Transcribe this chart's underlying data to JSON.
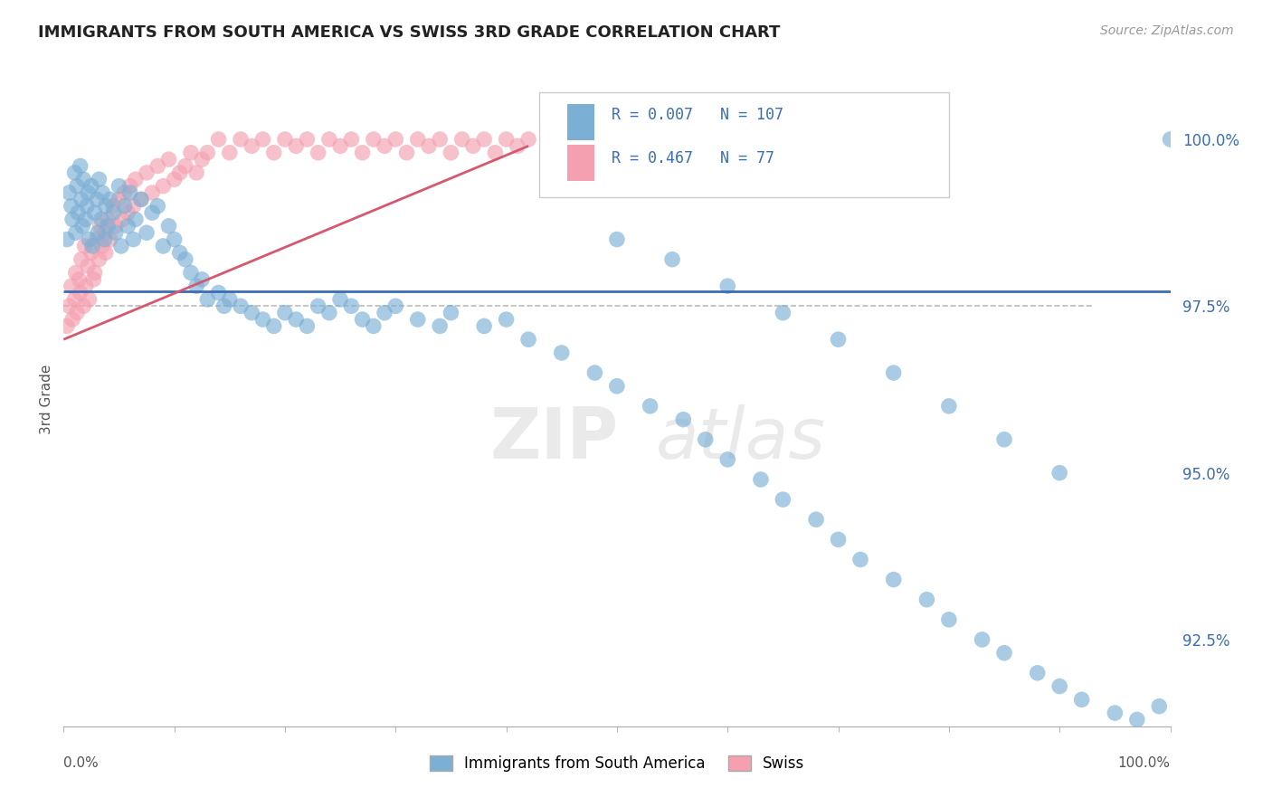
{
  "title": "IMMIGRANTS FROM SOUTH AMERICA VS SWISS 3RD GRADE CORRELATION CHART",
  "source": "Source: ZipAtlas.com",
  "ylabel": "3rd Grade",
  "xlim": [
    0.0,
    100.0
  ],
  "ylim": [
    91.2,
    101.0
  ],
  "yticks": [
    92.5,
    95.0,
    97.5,
    100.0
  ],
  "ytick_labels": [
    "92.5%",
    "95.0%",
    "97.5%",
    "100.0%"
  ],
  "legend_blue_label": "Immigrants from South America",
  "legend_pink_label": "Swiss",
  "R_blue": "0.007",
  "N_blue": "107",
  "R_pink": "0.467",
  "N_pink": "77",
  "blue_color": "#7BAFD4",
  "pink_color": "#F4A0B0",
  "blue_line_color": "#3B6DB5",
  "pink_line_color": "#D45870",
  "dashed_line_y": 97.5,
  "dashed_line_color": "#BBBBBB",
  "blue_scatter_x": [
    0.3,
    0.5,
    0.7,
    0.8,
    1.0,
    1.1,
    1.2,
    1.3,
    1.5,
    1.6,
    1.7,
    1.8,
    2.0,
    2.1,
    2.2,
    2.3,
    2.5,
    2.6,
    2.8,
    3.0,
    3.1,
    3.2,
    3.4,
    3.5,
    3.7,
    3.8,
    4.0,
    4.2,
    4.5,
    4.7,
    5.0,
    5.2,
    5.5,
    5.8,
    6.0,
    6.3,
    6.5,
    7.0,
    7.5,
    8.0,
    8.5,
    9.0,
    9.5,
    10.0,
    10.5,
    11.0,
    11.5,
    12.0,
    12.5,
    13.0,
    14.0,
    14.5,
    15.0,
    16.0,
    17.0,
    18.0,
    19.0,
    20.0,
    21.0,
    22.0,
    23.0,
    24.0,
    25.0,
    26.0,
    27.0,
    28.0,
    29.0,
    30.0,
    32.0,
    34.0,
    35.0,
    38.0,
    40.0,
    42.0,
    45.0,
    48.0,
    50.0,
    53.0,
    56.0,
    58.0,
    60.0,
    63.0,
    65.0,
    68.0,
    70.0,
    72.0,
    75.0,
    78.0,
    80.0,
    83.0,
    85.0,
    88.0,
    90.0,
    92.0,
    95.0,
    97.0,
    99.0,
    100.0,
    50.0,
    55.0,
    60.0,
    65.0,
    70.0,
    75.0,
    80.0,
    85.0,
    90.0
  ],
  "blue_scatter_y": [
    98.5,
    99.2,
    99.0,
    98.8,
    99.5,
    98.6,
    99.3,
    98.9,
    99.6,
    99.1,
    98.7,
    99.4,
    98.8,
    99.0,
    99.2,
    98.5,
    99.3,
    98.4,
    98.9,
    99.1,
    98.6,
    99.4,
    98.8,
    99.2,
    98.5,
    99.0,
    98.7,
    99.1,
    98.9,
    98.6,
    99.3,
    98.4,
    99.0,
    98.7,
    99.2,
    98.5,
    98.8,
    99.1,
    98.6,
    98.9,
    99.0,
    98.4,
    98.7,
    98.5,
    98.3,
    98.2,
    98.0,
    97.8,
    97.9,
    97.6,
    97.7,
    97.5,
    97.6,
    97.5,
    97.4,
    97.3,
    97.2,
    97.4,
    97.3,
    97.2,
    97.5,
    97.4,
    97.6,
    97.5,
    97.3,
    97.2,
    97.4,
    97.5,
    97.3,
    97.2,
    97.4,
    97.2,
    97.3,
    97.0,
    96.8,
    96.5,
    96.3,
    96.0,
    95.8,
    95.5,
    95.2,
    94.9,
    94.6,
    94.3,
    94.0,
    93.7,
    93.4,
    93.1,
    92.8,
    92.5,
    92.3,
    92.0,
    91.8,
    91.6,
    91.4,
    91.3,
    91.5,
    100.0,
    98.5,
    98.2,
    97.8,
    97.4,
    97.0,
    96.5,
    96.0,
    95.5,
    95.0
  ],
  "pink_scatter_x": [
    0.3,
    0.5,
    0.7,
    0.8,
    1.0,
    1.1,
    1.2,
    1.4,
    1.5,
    1.6,
    1.8,
    1.9,
    2.0,
    2.2,
    2.3,
    2.5,
    2.7,
    2.8,
    3.0,
    3.2,
    3.3,
    3.5,
    3.7,
    3.8,
    4.0,
    4.2,
    4.5,
    4.7,
    5.0,
    5.3,
    5.5,
    5.8,
    6.0,
    6.3,
    6.5,
    7.0,
    7.5,
    8.0,
    8.5,
    9.0,
    9.5,
    10.0,
    10.5,
    11.0,
    11.5,
    12.0,
    12.5,
    13.0,
    14.0,
    15.0,
    16.0,
    17.0,
    18.0,
    19.0,
    20.0,
    21.0,
    22.0,
    23.0,
    24.0,
    25.0,
    26.0,
    27.0,
    28.0,
    29.0,
    30.0,
    31.0,
    32.0,
    33.0,
    34.0,
    35.0,
    36.0,
    37.0,
    38.0,
    39.0,
    40.0,
    41.0,
    42.0
  ],
  "pink_scatter_y": [
    97.2,
    97.5,
    97.8,
    97.3,
    97.6,
    98.0,
    97.4,
    97.9,
    97.7,
    98.2,
    97.5,
    98.4,
    97.8,
    98.1,
    97.6,
    98.3,
    97.9,
    98.0,
    98.5,
    98.2,
    98.7,
    98.4,
    98.6,
    98.3,
    98.8,
    98.5,
    99.0,
    98.7,
    99.1,
    98.8,
    99.2,
    98.9,
    99.3,
    99.0,
    99.4,
    99.1,
    99.5,
    99.2,
    99.6,
    99.3,
    99.7,
    99.4,
    99.5,
    99.6,
    99.8,
    99.5,
    99.7,
    99.8,
    100.0,
    99.8,
    100.0,
    99.9,
    100.0,
    99.8,
    100.0,
    99.9,
    100.0,
    99.8,
    100.0,
    99.9,
    100.0,
    99.8,
    100.0,
    99.9,
    100.0,
    99.8,
    100.0,
    99.9,
    100.0,
    99.8,
    100.0,
    99.9,
    100.0,
    99.8,
    100.0,
    99.9,
    100.0
  ],
  "blue_trend_x": [
    0.0,
    100.0
  ],
  "blue_trend_y": [
    97.72,
    97.72
  ],
  "pink_trend_x": [
    0.0,
    42.0
  ],
  "pink_trend_y": [
    97.0,
    99.9
  ]
}
